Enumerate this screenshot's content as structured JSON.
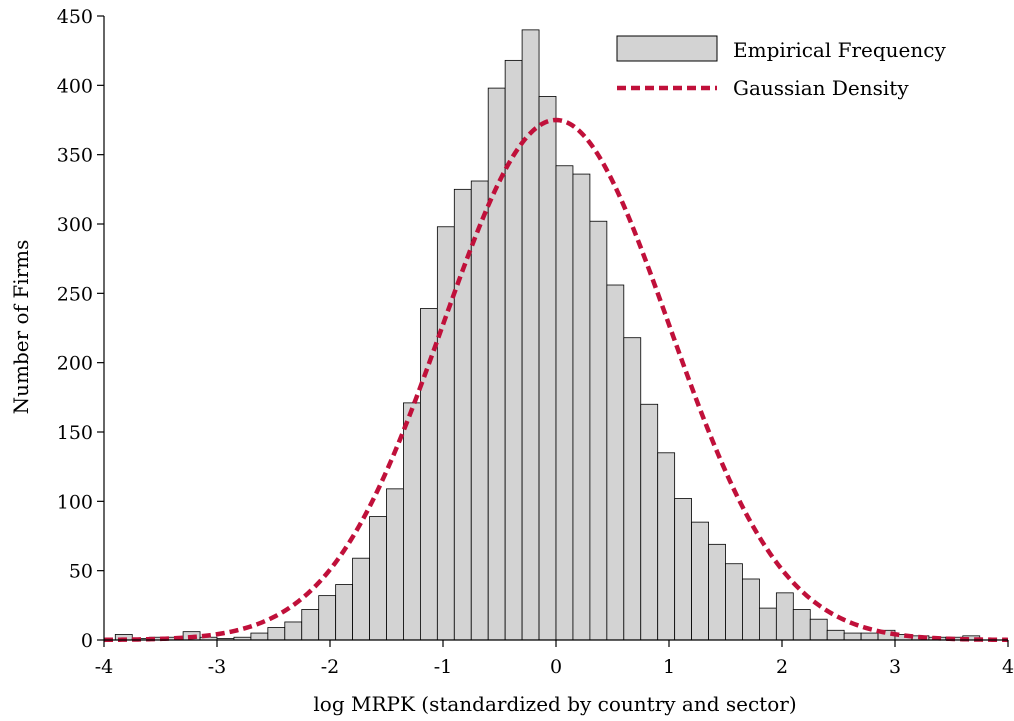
{
  "chart_data": {
    "type": "bar",
    "xlabel": "log MRPK (standardized by country and sector)",
    "ylabel": "Number of Firms",
    "xlim": [
      -4,
      4
    ],
    "ylim": [
      0,
      450
    ],
    "xticks": [
      -4,
      -3,
      -2,
      -1,
      0,
      1,
      2,
      3,
      4
    ],
    "yticks": [
      0,
      50,
      100,
      150,
      200,
      250,
      300,
      350,
      400,
      450
    ],
    "legend_placement": "top-right",
    "bin_width": 0.15,
    "bins_start": -3.9,
    "series": [
      {
        "name": "Empirical Frequency",
        "kind": "histogram",
        "color": "#d3d3d3",
        "values": [
          4,
          1,
          2,
          2,
          6,
          2,
          1,
          2,
          5,
          9,
          13,
          22,
          32,
          40,
          59,
          89,
          109,
          171,
          239,
          298,
          325,
          331,
          398,
          418,
          440,
          392,
          342,
          336,
          302,
          256,
          218,
          170,
          135,
          102,
          85,
          69,
          55,
          44,
          23,
          34,
          22,
          15,
          7,
          5,
          5,
          7,
          4,
          3,
          2,
          2,
          3
        ]
      },
      {
        "name": "Gaussian Density",
        "kind": "line",
        "color": "#c0103a",
        "mu": 0,
        "sigma": 1,
        "peak": 375
      }
    ]
  }
}
